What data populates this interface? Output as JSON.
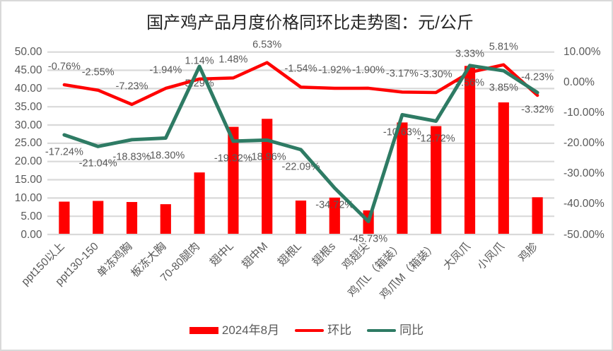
{
  "chart_data": {
    "type": "combo-bar-line",
    "title": "国产鸡产品月度价格同环比走势图：元/公斤",
    "categories": [
      "ppt150以上",
      "ppt130-150",
      "单冻鸡胸",
      "板冻大胸",
      "70-80腿肉",
      "翅中L",
      "翅中M",
      "翅根L",
      "翅根s",
      "鸡翅尖",
      "鸡爪L（箱装）",
      "鸡爪M（箱装）",
      "大凤爪",
      "小凤爪",
      "鸡胗"
    ],
    "bar_series": {
      "name": "2024年8月",
      "axis": "left",
      "color": "#ff0000",
      "values": [
        9.0,
        9.2,
        8.9,
        8.3,
        17.0,
        29.5,
        31.7,
        9.3,
        10.1,
        6.6,
        30.7,
        29.7,
        46.2,
        36.2,
        10.2
      ]
    },
    "line_series": [
      {
        "name": "环比",
        "axis": "right",
        "color": "#ff0000",
        "label_position": "above",
        "values": [
          -0.76,
          -2.55,
          -7.23,
          -1.94,
          1.14,
          1.48,
          6.53,
          -1.54,
          -1.92,
          -1.9,
          -3.17,
          -3.3,
          3.33,
          5.81,
          -4.23
        ],
        "labels": [
          "-0.76%",
          "-2.55%",
          "-7.23%",
          "-1.94%",
          "1.14%",
          "1.48%",
          "6.53%",
          "-1.54%",
          "-1.92%",
          "-1.90%",
          "-3.17%",
          "-3.30%",
          "3.33%",
          "5.81%",
          "-4.23%"
        ]
      },
      {
        "name": "同比",
        "axis": "right",
        "color": "#2e7b64",
        "label_position": "below",
        "values": [
          -17.24,
          -21.04,
          -18.83,
          -18.3,
          5.29,
          -19.32,
          -18.96,
          -22.09,
          -34.72,
          -45.73,
          -10.63,
          -12.72,
          5.56,
          3.85,
          -3.32
        ],
        "labels": [
          "-17.24%",
          "-21.04%",
          "-18.83%",
          "-18.30%",
          "5.29%",
          "-19.32%",
          "-18.96%",
          "-22.09%",
          "-34.72%",
          "-45.73%",
          "-10.63%",
          "-12.72%",
          "5.56%",
          "3.85%",
          "-3.32%"
        ]
      }
    ],
    "left_axis": {
      "min": 0,
      "max": 50,
      "step": 5,
      "ticks": [
        "50.00",
        "45.00",
        "40.00",
        "35.00",
        "30.00",
        "25.00",
        "20.00",
        "15.00",
        "10.00",
        "5.00",
        "0.00"
      ]
    },
    "right_axis": {
      "min": -50,
      "max": 10,
      "step": 10,
      "ticks": [
        "10.00%",
        "0.00%",
        "-10.00%",
        "-20.00%",
        "-30.00%",
        "-40.00%",
        "-50.00%"
      ]
    },
    "grid": true,
    "gridline_color": "#d9d9d9",
    "legend_position": "bottom"
  }
}
